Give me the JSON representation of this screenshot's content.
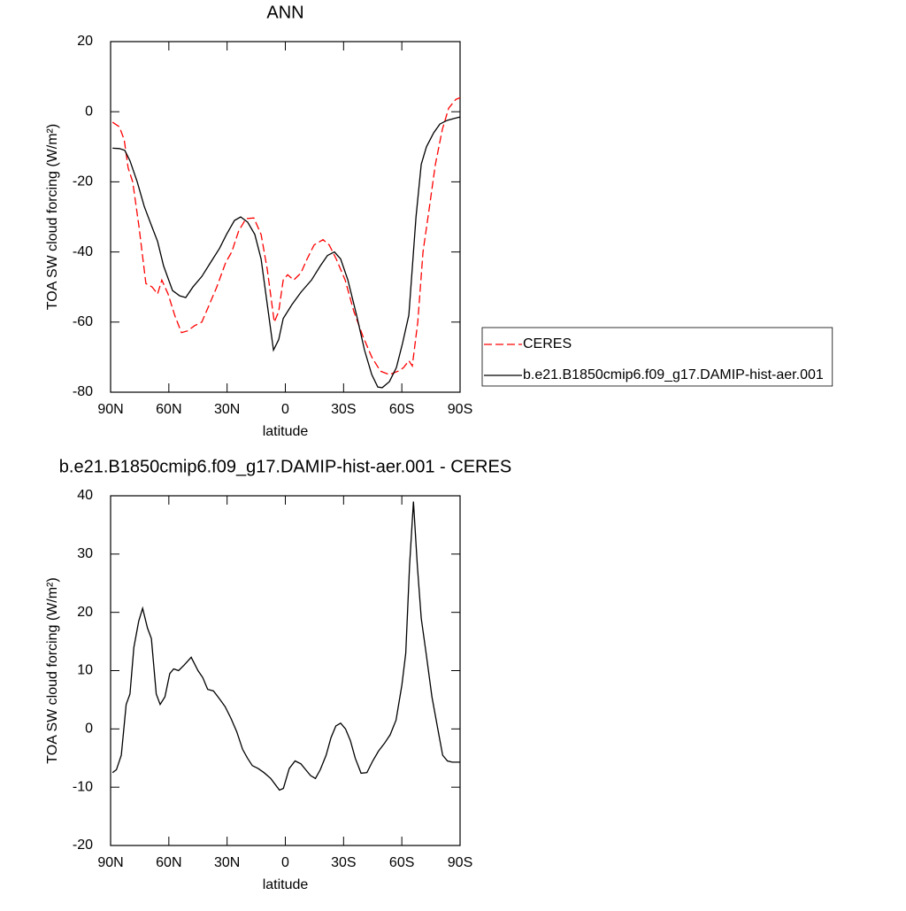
{
  "chart_data": [
    {
      "type": "line",
      "title": "ANN",
      "xlabel": "latitude",
      "ylabel": "TOA SW cloud forcing (W/m²)",
      "xlim": [
        90,
        -90
      ],
      "xticks": [
        {
          "value": 90,
          "label": "90N"
        },
        {
          "value": 60,
          "label": "60N"
        },
        {
          "value": 30,
          "label": "30N"
        },
        0,
        {
          "value": -30,
          "label": "30S"
        },
        {
          "value": -60,
          "label": "60S"
        },
        {
          "value": -90,
          "label": "90S"
        }
      ],
      "ylim": [
        -80,
        20
      ],
      "yticks": [
        -80,
        -60,
        -40,
        -20,
        0,
        20
      ],
      "legend": "right",
      "series": [
        {
          "name": "CERES",
          "color": "#ff0000",
          "dash": true,
          "x": [
            89,
            85.5,
            83,
            81,
            78.6,
            75.4,
            71.8,
            68.6,
            65.8,
            63.6,
            60.4,
            57,
            53.5,
            50.3,
            46.7,
            43,
            39.9,
            35.3,
            30.7,
            27.6,
            24,
            20.3,
            16.2,
            12.5,
            9.3,
            5.7,
            3.4,
            1.1,
            -1.2,
            -4.3,
            -8,
            -11.2,
            -14.8,
            -19.4,
            -22.6,
            -26.2,
            -30.8,
            -35.3,
            -39.9,
            -44.5,
            -49,
            -53.6,
            -58.1,
            -60.9,
            -63.6,
            -65.4,
            -68.2,
            -70.9,
            -74,
            -77.3,
            -80.9,
            -84.1,
            -87.8,
            -90
          ],
          "values": [
            -3,
            -4.3,
            -8,
            -16,
            -20,
            -32.6,
            -49,
            -50,
            -52,
            -48,
            -52,
            -58,
            -63,
            -62.5,
            -61,
            -60,
            -56,
            -50,
            -43,
            -40,
            -34,
            -30.5,
            -30.3,
            -35,
            -45,
            -60,
            -57,
            -48,
            -46.5,
            -48,
            -46,
            -42,
            -38,
            -36.5,
            -38,
            -42,
            -48,
            -57,
            -64,
            -70,
            -74,
            -75,
            -74,
            -73,
            -71,
            -72.5,
            -60,
            -40,
            -28,
            -15,
            -5,
            1,
            3.5,
            4
          ]
        },
        {
          "name": "b.e21.B1850cmip6.f09_g17.DAMIP-hist-aer.001",
          "color": "#000000",
          "dash": false,
          "x": [
            89,
            85.5,
            82.7,
            80,
            76.3,
            72.7,
            68.6,
            65.8,
            62.7,
            58.1,
            54.4,
            51.3,
            47.6,
            43,
            38.5,
            33.9,
            30.3,
            26.2,
            23,
            19.4,
            15.7,
            12.5,
            9.3,
            6.1,
            3.4,
            1.1,
            -3.4,
            -8,
            -13.5,
            -18,
            -21.7,
            -25.3,
            -28.5,
            -32.2,
            -36.7,
            -40.8,
            -44.5,
            -47.6,
            -49.9,
            -53.6,
            -57.2,
            -60.4,
            -63.6,
            -67.3,
            -70,
            -72.7,
            -76.4,
            -79.6,
            -83.2,
            -86.4,
            -90
          ],
          "values": [
            -10.4,
            -10.5,
            -11,
            -14,
            -20,
            -27,
            -33,
            -37,
            -44,
            -51,
            -52.5,
            -53,
            -50,
            -47,
            -43,
            -39,
            -35,
            -31,
            -30,
            -31.5,
            -35,
            -42,
            -55,
            -68,
            -65,
            -59,
            -55,
            -51.5,
            -48,
            -44,
            -41,
            -40,
            -42,
            -48,
            -58,
            -68,
            -75,
            -78.5,
            -78.7,
            -77,
            -73,
            -66,
            -58,
            -30,
            -15,
            -10,
            -6,
            -3.5,
            -2.5,
            -2,
            -1.5
          ]
        }
      ]
    },
    {
      "type": "line",
      "title": "b.e21.B1850cmip6.f09_g17.DAMIP-hist-aer.001 - CERES",
      "xlabel": "latitude",
      "ylabel": "TOA SW cloud forcing (W/m²)",
      "xlim": [
        90,
        -90
      ],
      "xticks": [
        {
          "value": 90,
          "label": "90N"
        },
        {
          "value": 60,
          "label": "60N"
        },
        {
          "value": 30,
          "label": "30N"
        },
        0,
        {
          "value": -30,
          "label": "30S"
        },
        {
          "value": -60,
          "label": "60S"
        },
        {
          "value": -90,
          "label": "90S"
        }
      ],
      "ylim": [
        -20,
        40
      ],
      "yticks": [
        -20,
        -10,
        0,
        10,
        20,
        30,
        40
      ],
      "series": [
        {
          "color": "#000000",
          "dash": false,
          "x": [
            89,
            87,
            84.5,
            82,
            80,
            78,
            75.5,
            73.5,
            71,
            69,
            66.5,
            64.5,
            62,
            59.5,
            57.5,
            55,
            52,
            48.5,
            45,
            42.5,
            40,
            37,
            34,
            31,
            28,
            25,
            22,
            19.5,
            17,
            14,
            11,
            7.5,
            3,
            1,
            -2,
            -5,
            -8,
            -10.5,
            -13,
            -15.5,
            -18,
            -21,
            -23.5,
            -26,
            -28.5,
            -31,
            -33.5,
            -36,
            -39,
            -42,
            -45,
            -48,
            -51,
            -54,
            -57,
            -60,
            -62,
            -64,
            -66,
            -68,
            -70,
            -72.5,
            -75.5,
            -78.5,
            -81,
            -83.5,
            -86,
            -90
          ],
          "values": [
            -7.5,
            -7,
            -4.5,
            4.2,
            6,
            14,
            18.5,
            20.7,
            17.3,
            15.5,
            6,
            4.2,
            5.5,
            9.5,
            10.3,
            10,
            11,
            12.3,
            10,
            8.8,
            6.8,
            6.5,
            5.2,
            3.8,
            1.8,
            -0.5,
            -3.5,
            -5,
            -6.3,
            -6.8,
            -7.5,
            -8.5,
            -10.5,
            -10.2,
            -6.8,
            -5.5,
            -6,
            -7,
            -8,
            -8.5,
            -7,
            -4.5,
            -1.5,
            0.5,
            1,
            0,
            -2,
            -5,
            -7.6,
            -7.5,
            -5.5,
            -3.8,
            -2.5,
            -1,
            1.5,
            7.5,
            13,
            28,
            39,
            28,
            19,
            13,
            5.5,
            0,
            -4.5,
            -5.5,
            -5.7,
            -5.7
          ]
        }
      ]
    }
  ]
}
